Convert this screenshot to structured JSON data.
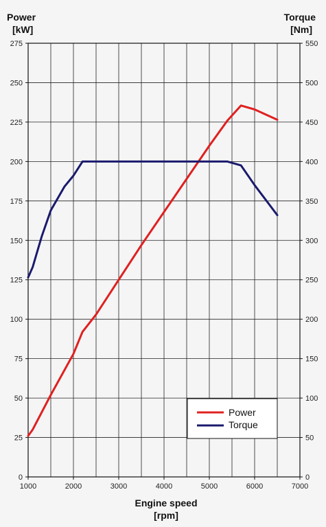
{
  "chart_data": {
    "type": "line",
    "xlabel_line1": "Engine speed",
    "xlabel_line2": "[rpm]",
    "ylabel_left_line1": "Power",
    "ylabel_left_line2": "[kW]",
    "ylabel_right_line1": "Torque",
    "ylabel_right_line2": "[Nm]",
    "xlim": [
      1000,
      7000
    ],
    "ylim_left": [
      0,
      275
    ],
    "ylim_right": [
      0,
      550
    ],
    "x_ticks": [
      "1000",
      "2000",
      "3000",
      "4000",
      "5000",
      "6000",
      "7000"
    ],
    "x_tick_values": [
      1000,
      2000,
      3000,
      4000,
      5000,
      6000,
      7000
    ],
    "left_ticks": [
      "0",
      "25",
      "50",
      "75",
      "100",
      "125",
      "150",
      "175",
      "200",
      "225",
      "250",
      "275"
    ],
    "left_tick_values": [
      0,
      25,
      50,
      75,
      100,
      125,
      150,
      175,
      200,
      225,
      250,
      275
    ],
    "right_ticks": [
      "0",
      "50",
      "100",
      "150",
      "200",
      "250",
      "300",
      "350",
      "400",
      "450",
      "500",
      "550"
    ],
    "x_gridlines": [
      1000,
      1500,
      2000,
      2500,
      3000,
      3500,
      4000,
      4500,
      5000,
      5500,
      6000,
      6500,
      7000
    ],
    "grid": true,
    "legend_position": "bottom-right",
    "series": [
      {
        "name": "Power",
        "axis": "left",
        "color": "#e02020",
        "x": [
          1000,
          1100,
          1500,
          2000,
          2200,
          2500,
          3000,
          3500,
          4000,
          4500,
          5000,
          5400,
          5700,
          6000,
          6500
        ],
        "y": [
          26,
          30,
          52,
          78,
          92,
          103,
          125,
          147,
          168,
          189,
          210,
          226,
          235.5,
          233,
          226.5
        ]
      },
      {
        "name": "Torque",
        "axis": "right",
        "color": "#1a1a6e",
        "x": [
          1000,
          1100,
          1300,
          1500,
          1800,
          2000,
          2200,
          2500,
          3000,
          4000,
          5000,
          5400,
          5700,
          6000,
          6500
        ],
        "y": [
          253,
          266,
          305,
          338,
          368,
          382,
          400,
          400,
          400,
          400,
          400,
          400,
          395,
          370,
          332
        ]
      }
    ]
  }
}
